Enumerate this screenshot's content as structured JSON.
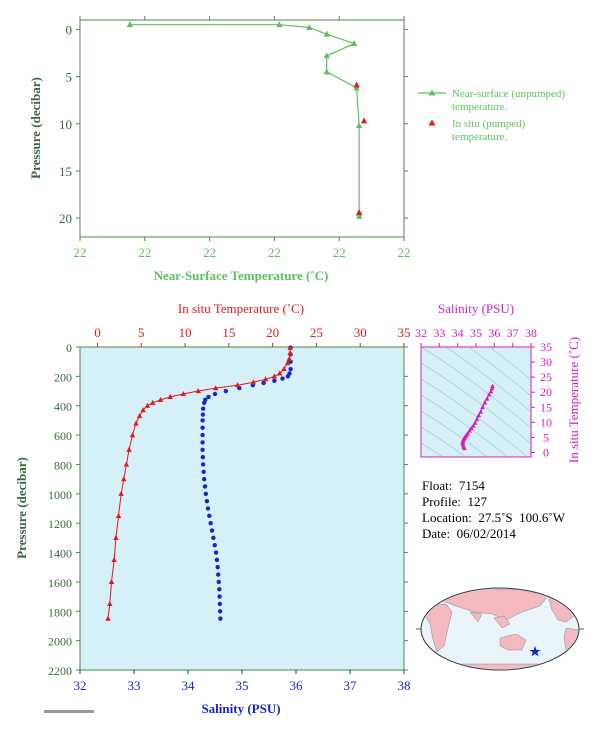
{
  "colors": {
    "green": "#5fbf5f",
    "axis_green": "#4a8a4a",
    "red": "#e31a1c",
    "blue": "#1428c8",
    "magenta": "#d21fbf",
    "panel_bg": "#d6f0f7",
    "label_green": "#3a6a3a"
  },
  "chart_data": [
    {
      "type": "line",
      "id": "near-surface-panel",
      "xlabel": "Near-Surface Temperature (˚C)",
      "ylabel": "Pressure (decibar)",
      "x_tick_labels": [
        "22",
        "22",
        "22",
        "22",
        "22",
        "22"
      ],
      "y_ticks": [
        0,
        5,
        10,
        15,
        20
      ],
      "xlim": [
        21.8,
        22.06
      ],
      "ylim": [
        22,
        -1
      ],
      "series": [
        {
          "name": "Near-surface (unpumped) temperature.",
          "marker": "triangle-line",
          "x": [
            21.84,
            21.96,
            21.984,
            21.998,
            22.02,
            21.998,
            21.998,
            22.022,
            22.024,
            22.024,
            22.024
          ],
          "y": [
            -0.5,
            -0.5,
            -0.2,
            0.5,
            1.5,
            2.8,
            4.5,
            6.2,
            10.2,
            19.5,
            19.8
          ]
        },
        {
          "name": "In situ (pumped) temperature.",
          "marker": "triangle",
          "x": [
            22.022,
            22.028,
            22.024
          ],
          "y": [
            5.9,
            9.7,
            19.4
          ]
        }
      ]
    },
    {
      "type": "line",
      "id": "profile-panel",
      "x_top_label": "In situ Temperature (˚C)",
      "x_bottom_label": "Salinity (PSU)",
      "ylabel": "Pressure (decibar)",
      "temp_ticks": [
        0,
        5,
        10,
        15,
        20,
        25,
        30,
        35
      ],
      "sal_ticks": [
        32,
        33,
        34,
        35,
        36,
        37,
        38
      ],
      "y_ticks": [
        0,
        200,
        400,
        600,
        800,
        1000,
        1200,
        1400,
        1600,
        1800,
        2000,
        2200
      ],
      "temp_lim": [
        -2,
        35
      ],
      "sal_lim": [
        32,
        38
      ],
      "ylim": [
        2200,
        0
      ],
      "series": [
        {
          "name": "In situ Temperature",
          "axis": "top",
          "x": [
            22.0,
            22.0,
            21.9,
            21.7,
            21.3,
            20.8,
            20.2,
            19.2,
            17.8,
            16.0,
            13.5,
            11.5,
            9.8,
            8.3,
            7.2,
            6.3,
            5.7,
            5.2,
            4.8,
            4.4,
            4.0,
            3.6,
            3.3,
            3.0,
            2.7,
            2.4,
            2.1,
            1.9,
            1.6,
            1.4,
            1.2
          ],
          "y": [
            5,
            40,
            80,
            110,
            150,
            180,
            200,
            220,
            240,
            260,
            280,
            300,
            320,
            340,
            360,
            380,
            400,
            430,
            470,
            520,
            600,
            700,
            800,
            900,
            1000,
            1150,
            1300,
            1450,
            1600,
            1750,
            1850
          ]
        },
        {
          "name": "Salinity",
          "axis": "bottom",
          "x": [
            35.9,
            35.9,
            35.9,
            35.9,
            35.88,
            35.85,
            35.75,
            35.6,
            35.4,
            35.2,
            34.95,
            34.7,
            34.5,
            34.38,
            34.32,
            34.3,
            34.28,
            34.27,
            34.27,
            34.27,
            34.28,
            34.3,
            34.33,
            34.37,
            34.42,
            34.47,
            34.52,
            34.55,
            34.58,
            34.6
          ],
          "y": [
            5,
            50,
            100,
            150,
            180,
            200,
            215,
            230,
            245,
            260,
            280,
            300,
            320,
            340,
            360,
            380,
            420,
            500,
            600,
            700,
            800,
            900,
            1000,
            1100,
            1200,
            1300,
            1400,
            1500,
            1650,
            1850
          ]
        }
      ]
    },
    {
      "type": "scatter",
      "id": "ts-panel",
      "x_top_label": "Salinity (PSU)",
      "y_right_label": "In situ Temperature (˚C)",
      "x_ticks": [
        32,
        33,
        34,
        35,
        36,
        37,
        38
      ],
      "y_ticks": [
        0,
        5,
        10,
        15,
        20,
        25,
        30,
        35
      ],
      "xlim": [
        32,
        38
      ],
      "ylim": [
        -1.5,
        35
      ],
      "series": [
        {
          "name": "T-S",
          "x": [
            35.9,
            35.88,
            35.82,
            35.72,
            35.6,
            35.48,
            35.36,
            35.26,
            35.15,
            35.05,
            34.95,
            34.85,
            34.75,
            34.65,
            34.55,
            34.48,
            34.42,
            34.37,
            34.33,
            34.3,
            34.28,
            34.28,
            34.3,
            34.33,
            34.37
          ],
          "y": [
            22.0,
            21.3,
            20.2,
            19.2,
            17.8,
            16.5,
            15.0,
            13.5,
            12.3,
            11.0,
            9.8,
            8.8,
            8.0,
            7.2,
            6.3,
            5.7,
            5.2,
            4.8,
            4.4,
            4.0,
            3.6,
            3.0,
            2.4,
            1.9,
            1.4
          ]
        }
      ]
    }
  ],
  "info": {
    "float_key": "Float:",
    "float_val": "7154",
    "profile_key": "Profile:",
    "profile_val": "127",
    "location_key": "Location:",
    "location_lat": "27.5˚S",
    "location_lon": "100.6˚W",
    "date_key": "Date:",
    "date_val": "06/02/2014"
  },
  "map": {
    "land_color": "#f4b8c0",
    "ocean_color": "#e8f4fa",
    "marker_color": "#1428c8"
  }
}
